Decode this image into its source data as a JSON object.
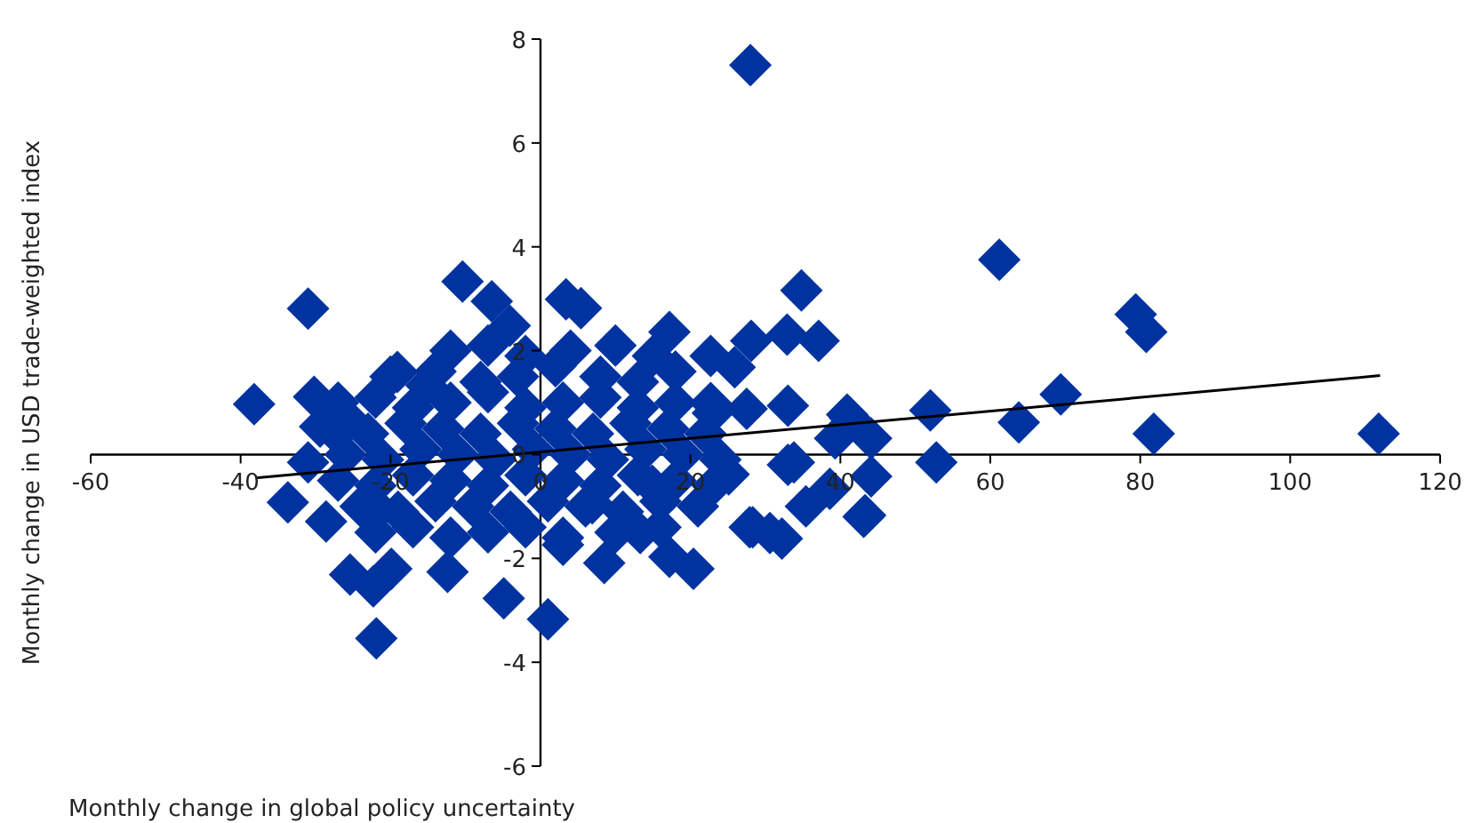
{
  "chart_data": {
    "type": "scatter",
    "xlabel": "Monthly change in global policy uncertainty",
    "ylabel": "Monthly change in USD trade-weighted index",
    "xlim": [
      -60,
      120
    ],
    "ylim": [
      -6,
      8
    ],
    "xticks": [
      -60,
      -40,
      -20,
      0,
      20,
      40,
      60,
      80,
      100,
      120
    ],
    "yticks": [
      -6,
      -4,
      -2,
      0,
      2,
      4,
      6,
      8
    ],
    "marker": "diamond",
    "series": [
      {
        "color": "#0033a0",
        "x": [
          28,
          61.2,
          79.4,
          80.8,
          69.4,
          63.8,
          81.8,
          111.8,
          52,
          52.8,
          34.8,
          28.1,
          32.9,
          37.1,
          43.1,
          41.3,
          44.1,
          44.1,
          33,
          39.3,
          35.4,
          38.6,
          33,
          27.9,
          32.2,
          30.6,
          -31,
          -38.2,
          -33.7,
          -21.9,
          -10.4,
          1,
          -19.1,
          -6.5,
          3.4,
          -25.4,
          -22.3,
          -19.9,
          -4.9,
          -12.4,
          -30.2,
          -29.4,
          -28.6,
          -31,
          -25.4,
          -21.5,
          -4.1,
          -15.2,
          5.4,
          17.2,
          22.7,
          25.9,
          40.9,
          28.3,
          20.4,
          17.2,
          43.3,
          8.5,
          3,
          22.7,
          27.5,
          33.8,
          25.1,
          13.3,
          14.9,
          6.9,
          -20,
          -14,
          -8,
          -3,
          2,
          8,
          13,
          18,
          -27,
          -22,
          -17,
          -12,
          -7,
          -2,
          3,
          8,
          13,
          18,
          23,
          -28,
          -23,
          -18,
          -13,
          -8,
          -3,
          2,
          7,
          12,
          17,
          22,
          -26,
          -21,
          -16,
          -11,
          -6,
          -1,
          4,
          9,
          14,
          19,
          24,
          -27,
          -22,
          -17,
          -12,
          -7,
          -2,
          3,
          8,
          13,
          18,
          23,
          -24,
          -19,
          -14,
          -9,
          -4,
          1,
          6,
          11,
          16,
          21,
          -22,
          -17,
          -12,
          -7,
          -2,
          3,
          10,
          16,
          -12,
          -7,
          -2,
          4,
          10,
          15
        ],
        "values": [
          7.5,
          3.75,
          2.7,
          2.36,
          1.16,
          0.62,
          0.4,
          0.4,
          0.85,
          -0.15,
          3.16,
          2.19,
          2.31,
          2.19,
          -1.2,
          0.7,
          0.31,
          -0.42,
          0.94,
          0.31,
          -1,
          -0.66,
          -0.2,
          -1.4,
          -1.62,
          -1.51,
          2.81,
          0.97,
          -0.92,
          -3.54,
          3.33,
          -3.17,
          1.59,
          2.95,
          2.99,
          -2.31,
          -2.54,
          -2.2,
          -2.77,
          -2.26,
          1.11,
          0.54,
          -1.29,
          -0.15,
          0.65,
          -1.06,
          2.48,
          1.33,
          2.82,
          2.36,
          1.9,
          1.68,
          0.77,
          -1.4,
          -2.2,
          -1.97,
          -1.17,
          -2.09,
          -1.74,
          0.99,
          0.88,
          -0.15,
          -0.38,
          -1.51,
          -0.6,
          -0.94,
          1.5,
          1.6,
          1.4,
          1.5,
          1.7,
          1.5,
          1.4,
          1.6,
          1,
          1.1,
          0.9,
          1,
          1.2,
          0.9,
          1,
          1.1,
          0.9,
          1,
          0.8,
          0.5,
          0.4,
          0.6,
          0.5,
          0.4,
          0.6,
          0.5,
          0.4,
          0.6,
          0.5,
          0.4,
          0,
          -0.1,
          0.1,
          0,
          -0.1,
          0.1,
          0,
          -0.1,
          0.1,
          0,
          -0.1,
          -0.5,
          -0.6,
          -0.4,
          -0.5,
          -0.6,
          -0.4,
          -0.5,
          -0.6,
          -0.4,
          -0.5,
          -0.6,
          -1,
          -1.1,
          -0.9,
          -1,
          -1.1,
          -0.9,
          -1,
          -1.1,
          -0.9,
          -1,
          -1.5,
          -1.4,
          -1.6,
          -1.5,
          -1.4,
          -1.6,
          -1.5,
          -1.4,
          2,
          2.1,
          1.9,
          2,
          2.1,
          1.9
        ]
      },
      {
        "type": "line",
        "marker": "none",
        "color": "#000000",
        "x": [
          -38,
          112
        ],
        "values": [
          -0.45,
          1.52
        ]
      }
    ]
  }
}
